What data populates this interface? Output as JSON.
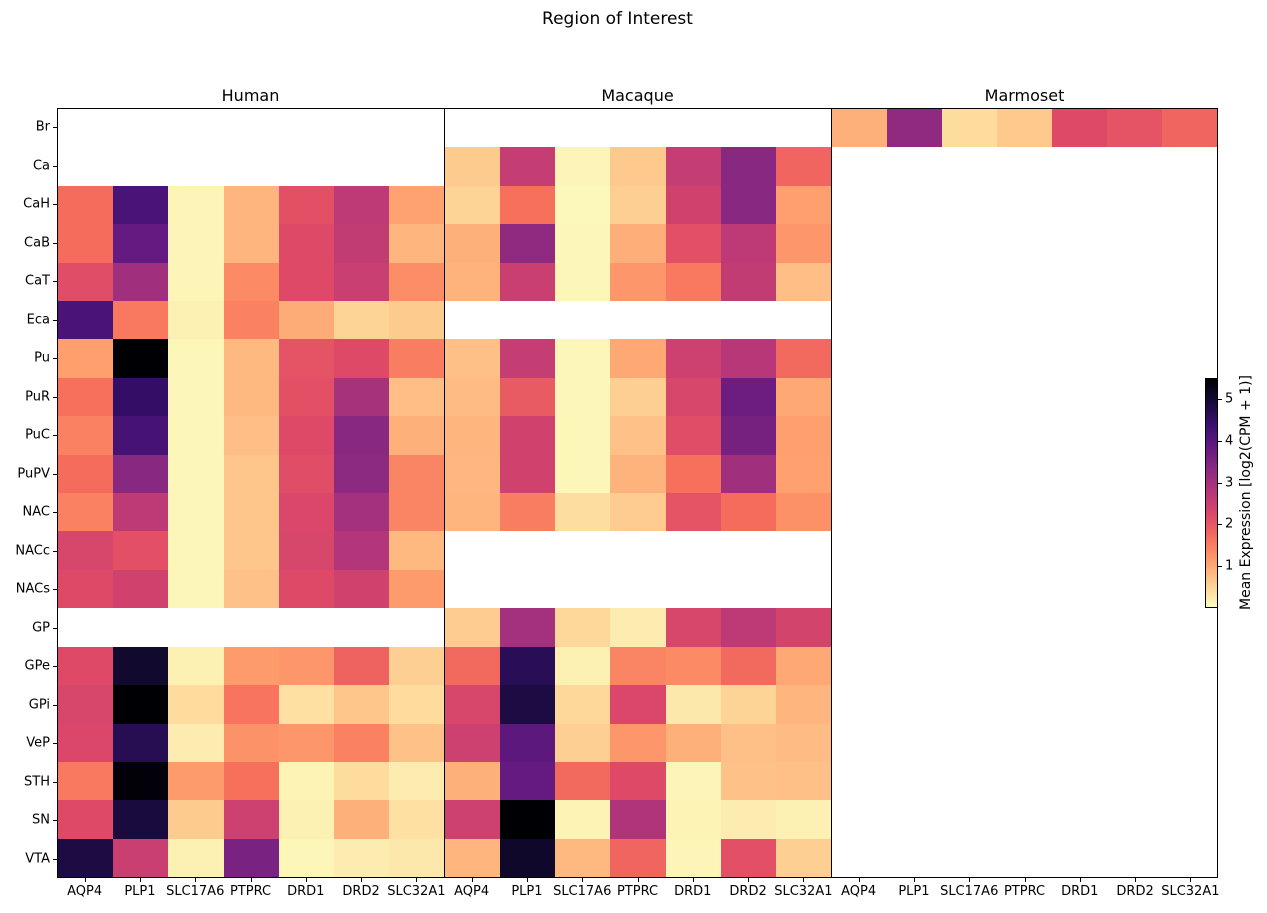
{
  "chart_data": {
    "type": "heatmap",
    "title": "Region of Interest",
    "colormap": "magma_r",
    "vmin": 0,
    "vmax": 5.5,
    "colorbar": {
      "label": "Mean Expression [log2(CPM + 1)]",
      "ticks": [
        1,
        2,
        3,
        4,
        5
      ]
    },
    "genes": [
      "AQP4",
      "PLP1",
      "SLC17A6",
      "PTPRC",
      "DRD1",
      "DRD2",
      "SLC32A1"
    ],
    "regions": [
      "Br",
      "Ca",
      "CaH",
      "CaB",
      "CaT",
      "Eca",
      "Pu",
      "PuR",
      "PuC",
      "PuPV",
      "NAC",
      "NACc",
      "NACs",
      "GP",
      "GPe",
      "GPi",
      "VeP",
      "STH",
      "SN",
      "VTA"
    ],
    "panels": [
      {
        "label": "Human",
        "values": [
          null,
          null,
          [
            1.7,
            4.2,
            0.1,
            0.85,
            2.1,
            2.65,
            1.05
          ],
          [
            1.7,
            3.85,
            0.1,
            0.85,
            2.2,
            2.6,
            0.85
          ],
          [
            2.15,
            3.05,
            0.1,
            1.35,
            2.2,
            2.5,
            1.3
          ],
          [
            4.2,
            1.55,
            0.15,
            1.45,
            0.95,
            0.5,
            0.6
          ],
          [
            1.1,
            5.5,
            0.08,
            0.8,
            2.05,
            2.2,
            1.5
          ],
          [
            1.65,
            4.5,
            0.08,
            0.8,
            2.1,
            2.95,
            0.75
          ],
          [
            1.45,
            4.25,
            0.08,
            0.75,
            2.2,
            3.35,
            0.9
          ],
          [
            1.7,
            3.35,
            0.08,
            0.65,
            2.15,
            3.3,
            1.4
          ],
          [
            1.45,
            2.65,
            0.08,
            0.65,
            2.25,
            3.0,
            1.4
          ],
          [
            2.3,
            2.1,
            0.08,
            0.65,
            2.3,
            2.8,
            0.8
          ],
          [
            2.2,
            2.4,
            0.08,
            0.7,
            2.2,
            2.4,
            1.15
          ],
          null,
          [
            2.2,
            5.05,
            0.15,
            1.15,
            1.2,
            1.85,
            0.55
          ],
          [
            2.3,
            5.5,
            0.4,
            1.6,
            0.35,
            0.65,
            0.4
          ],
          [
            2.25,
            4.7,
            0.2,
            1.25,
            1.2,
            1.45,
            0.7
          ],
          [
            1.55,
            5.45,
            1.15,
            1.65,
            0.12,
            0.4,
            0.2
          ],
          [
            2.2,
            4.9,
            0.6,
            2.45,
            0.15,
            0.9,
            0.35
          ],
          [
            4.85,
            2.5,
            0.15,
            3.55,
            0.08,
            0.2,
            0.25
          ]
        ]
      },
      {
        "label": "Macaque",
        "values": [
          null,
          [
            0.6,
            2.55,
            0.1,
            0.62,
            2.55,
            3.35,
            1.8
          ],
          [
            0.5,
            1.65,
            0.06,
            0.55,
            2.4,
            3.35,
            1.1
          ],
          [
            0.9,
            3.25,
            0.08,
            0.92,
            2.1,
            2.65,
            1.2
          ],
          [
            0.88,
            2.5,
            0.08,
            1.2,
            1.55,
            2.6,
            0.75
          ],
          null,
          [
            0.72,
            2.55,
            0.08,
            1.0,
            2.45,
            2.75,
            1.75
          ],
          [
            0.78,
            1.95,
            0.08,
            0.55,
            2.3,
            3.75,
            1.0
          ],
          [
            0.85,
            2.4,
            0.08,
            0.7,
            2.15,
            3.6,
            1.1
          ],
          [
            0.82,
            2.4,
            0.08,
            0.88,
            1.65,
            3.05,
            1.08
          ],
          [
            0.85,
            1.5,
            0.38,
            0.58,
            2.05,
            1.7,
            1.28
          ],
          null,
          null,
          [
            0.58,
            3.0,
            0.45,
            0.2,
            2.3,
            2.65,
            2.35
          ],
          [
            1.75,
            4.65,
            0.15,
            1.4,
            1.35,
            1.75,
            1.0
          ],
          [
            2.3,
            4.85,
            0.45,
            2.25,
            0.25,
            0.5,
            0.85
          ],
          [
            2.45,
            3.95,
            0.55,
            1.2,
            0.9,
            0.72,
            0.78
          ],
          [
            0.9,
            3.85,
            1.75,
            2.2,
            0.1,
            0.7,
            0.72
          ],
          [
            2.45,
            5.5,
            0.12,
            2.85,
            0.12,
            0.2,
            0.15
          ],
          [
            0.85,
            5.1,
            0.8,
            1.8,
            0.1,
            2.1,
            0.55
          ]
        ]
      },
      {
        "label": "Marmoset",
        "values": [
          [
            0.9,
            3.25,
            0.4,
            0.62,
            2.2,
            2.05,
            1.8
          ],
          null,
          null,
          null,
          null,
          null,
          null,
          null,
          null,
          null,
          null,
          null,
          null,
          null,
          null,
          null,
          null,
          null,
          null,
          null
        ]
      }
    ]
  }
}
